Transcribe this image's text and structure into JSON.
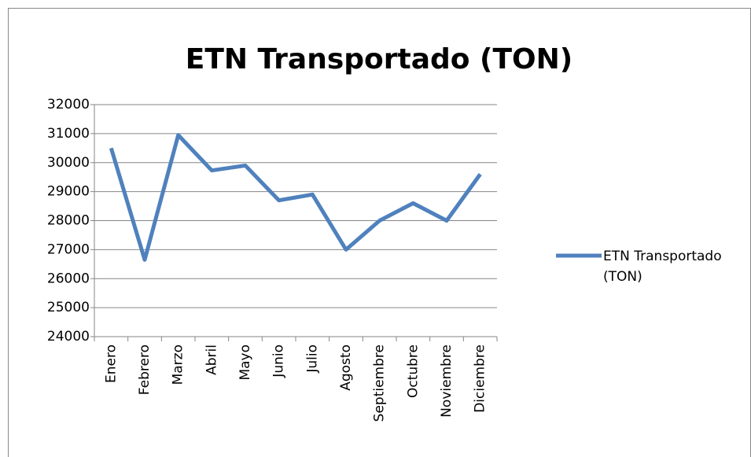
{
  "chart_data": {
    "type": "line",
    "title": "ETN Transportado (TON)",
    "categories": [
      "Enero",
      "Febrero",
      "Marzo",
      "Abril",
      "Mayo",
      "Junio",
      "Julio",
      "Agosto",
      "Septiembre",
      "Octubre",
      "Noviembre",
      "Diciembre"
    ],
    "series": [
      {
        "name": "ETN Transportado (TON)",
        "color": "#4f81bd",
        "values": [
          30500,
          26650,
          30950,
          29730,
          29900,
          28700,
          28900,
          27000,
          28000,
          28600,
          28000,
          29600
        ]
      }
    ],
    "ylim": [
      24000,
      32000
    ],
    "yticks": [
      24000,
      25000,
      26000,
      27000,
      28000,
      29000,
      30000,
      31000,
      32000
    ],
    "grid": true,
    "legend": "right"
  }
}
